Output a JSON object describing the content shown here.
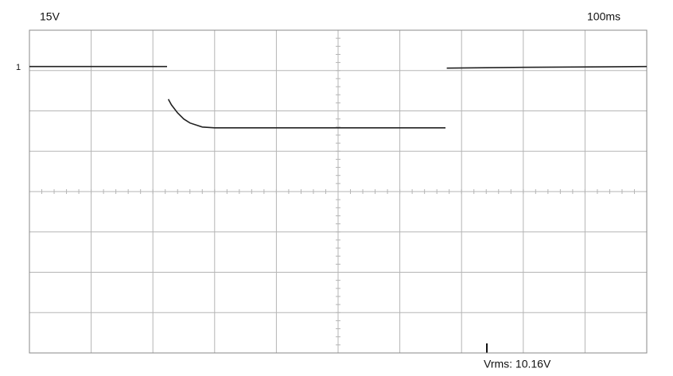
{
  "chart_data": {
    "type": "line",
    "volts_label": "15V",
    "time_label": "100ms",
    "channel_label": "1",
    "measurement": "Vrms: 10.16V",
    "x": [
      0,
      2.23,
      2.24,
      2.25,
      2.3,
      2.4,
      2.5,
      2.6,
      2.8,
      3.0,
      4.0,
      5.0,
      6.0,
      6.74,
      6.75,
      6.76,
      8.0,
      10.0
    ],
    "series": [
      {
        "color": "#222222",
        "values": [
          7.1,
          7.1,
          null,
          6.29,
          6.15,
          5.95,
          5.8,
          5.7,
          5.6,
          5.58,
          5.58,
          5.58,
          5.58,
          5.58,
          null,
          7.06,
          7.08,
          7.1
        ]
      }
    ],
    "xlim": [
      0,
      10
    ],
    "ylim": [
      0,
      8
    ],
    "xticks": [
      0,
      1,
      2,
      3,
      4,
      5,
      6,
      7,
      8,
      9,
      10
    ],
    "yticks": [
      0,
      1,
      2,
      3,
      4,
      5,
      6,
      7,
      8
    ],
    "grid": true
  }
}
